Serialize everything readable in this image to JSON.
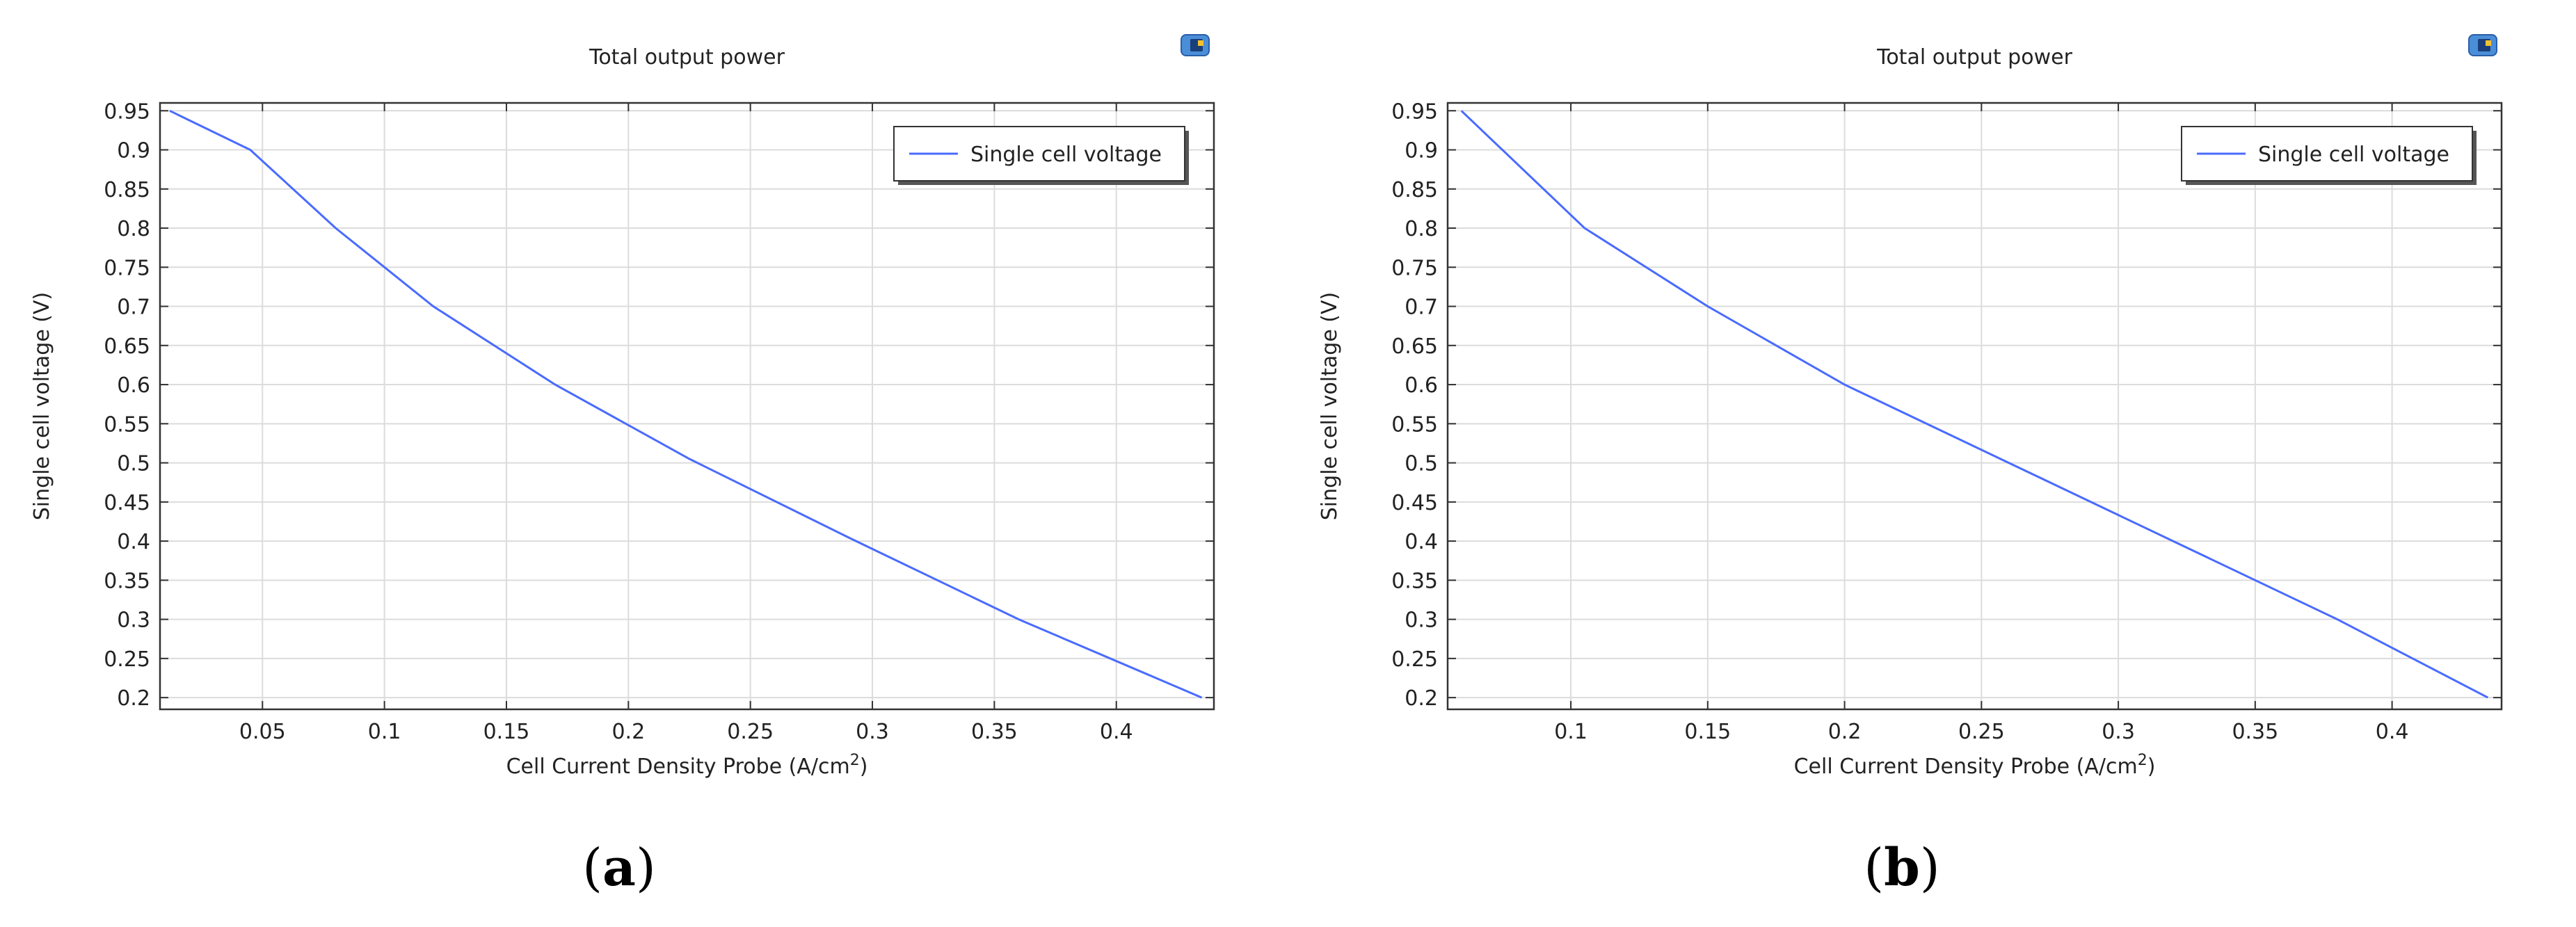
{
  "panels": [
    {
      "caption_letter": "a",
      "chart_data": {
        "type": "line",
        "title": "Total output power",
        "xlabel": "Cell Current Density Probe (A/cm",
        "xlabel_sup": "2",
        "xlabel_close": ")",
        "ylabel": "Single cell voltage (V)",
        "xlim": [
          0.008,
          0.44
        ],
        "ylim": [
          0.185,
          0.96
        ],
        "xticks": [
          0.05,
          0.1,
          0.15,
          0.2,
          0.25,
          0.3,
          0.35,
          0.4
        ],
        "xtick_labels": [
          "0.05",
          "0.1",
          "0.15",
          "0.2",
          "0.25",
          "0.3",
          "0.35",
          "0.4"
        ],
        "yticks": [
          0.2,
          0.25,
          0.3,
          0.35,
          0.4,
          0.45,
          0.5,
          0.55,
          0.6,
          0.65,
          0.7,
          0.75,
          0.8,
          0.85,
          0.9,
          0.95
        ],
        "ytick_labels": [
          "0.2",
          "0.25",
          "0.3",
          "0.35",
          "0.4",
          "0.45",
          "0.5",
          "0.55",
          "0.6",
          "0.65",
          "0.7",
          "0.75",
          "0.8",
          "0.85",
          "0.9",
          "0.95"
        ],
        "grid": true,
        "legend_position": "top-right",
        "series": [
          {
            "name": "Single cell voltage",
            "color": "#4a6bff",
            "x": [
              0.012,
              0.045,
              0.08,
              0.12,
              0.17,
              0.225,
              0.29,
              0.36,
              0.435
            ],
            "y": [
              0.95,
              0.9,
              0.8,
              0.7,
              0.6,
              0.505,
              0.405,
              0.3,
              0.2
            ]
          }
        ]
      }
    },
    {
      "caption_letter": "b",
      "chart_data": {
        "type": "line",
        "title": "Total output power",
        "xlabel": "Cell Current Density Probe (A/cm",
        "xlabel_sup": "2",
        "xlabel_close": ")",
        "ylabel": "Single cell voltage (V)",
        "xlim": [
          0.055,
          0.44
        ],
        "ylim": [
          0.185,
          0.96
        ],
        "xticks": [
          0.1,
          0.15,
          0.2,
          0.25,
          0.3,
          0.35,
          0.4
        ],
        "xtick_labels": [
          "0.1",
          "0.15",
          "0.2",
          "0.25",
          "0.3",
          "0.35",
          "0.4"
        ],
        "yticks": [
          0.2,
          0.25,
          0.3,
          0.35,
          0.4,
          0.45,
          0.5,
          0.55,
          0.6,
          0.65,
          0.7,
          0.75,
          0.8,
          0.85,
          0.9,
          0.95
        ],
        "ytick_labels": [
          "0.2",
          "0.25",
          "0.3",
          "0.35",
          "0.4",
          "0.45",
          "0.5",
          "0.55",
          "0.6",
          "0.65",
          "0.7",
          "0.75",
          "0.8",
          "0.85",
          "0.9",
          "0.95"
        ],
        "grid": true,
        "legend_position": "top-right",
        "series": [
          {
            "name": "Single cell voltage",
            "color": "#4a6bff",
            "x": [
              0.06,
              0.075,
              0.105,
              0.15,
              0.2,
              0.26,
              0.32,
              0.38,
              0.435
            ],
            "y": [
              0.95,
              0.9,
              0.8,
              0.7,
              0.6,
              0.5,
              0.4,
              0.3,
              0.2
            ]
          }
        ]
      }
    }
  ]
}
